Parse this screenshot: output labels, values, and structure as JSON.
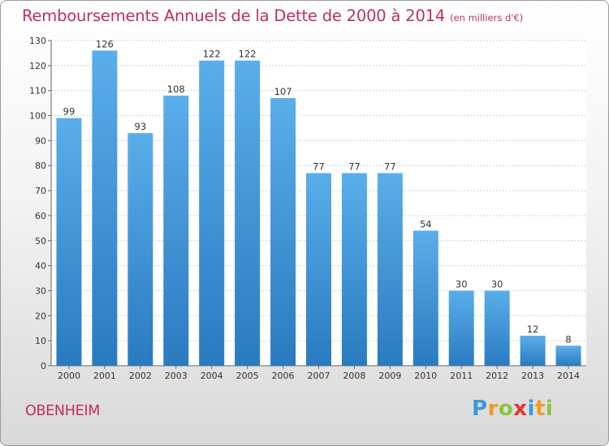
{
  "header": {
    "title": "Remboursements Annuels de la Dette de 2000 à 2014",
    "subtitle": "(en milliers d'€)"
  },
  "footer": {
    "commune": "OBENHEIM",
    "logo": {
      "letters": [
        "P",
        "r",
        "o",
        "x",
        "i",
        "t",
        "i"
      ],
      "colors": [
        "#3a9ad9",
        "#f29a1f",
        "#8bc43f",
        "#e8332a",
        "#3a9ad9",
        "#f29a1f",
        "#8bc43f"
      ]
    }
  },
  "chart_data": {
    "type": "bar",
    "title": "Remboursements Annuels de la Dette de 2000 à 2014",
    "subtitle": "(en milliers d'€)",
    "categories": [
      "2000",
      "2001",
      "2002",
      "2003",
      "2004",
      "2005",
      "2006",
      "2007",
      "2008",
      "2009",
      "2010",
      "2011",
      "2012",
      "2013",
      "2014"
    ],
    "values": [
      99,
      126,
      93,
      108,
      122,
      122,
      107,
      77,
      77,
      77,
      54,
      30,
      30,
      12,
      8
    ],
    "ylim": [
      0,
      130
    ],
    "yticks": [
      0,
      10,
      20,
      30,
      40,
      50,
      60,
      70,
      80,
      90,
      100,
      110,
      120,
      130
    ],
    "grid": true,
    "bar_color_top": "#5aaeea",
    "bar_color_bottom": "#2a7ac0",
    "grid_color": "#d0d0d0"
  }
}
